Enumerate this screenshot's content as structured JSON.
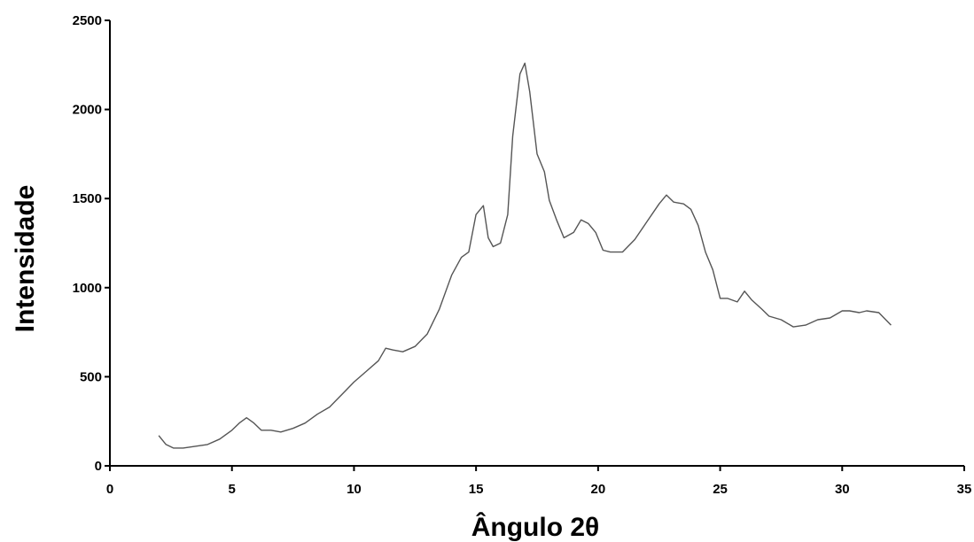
{
  "chart_data": {
    "type": "line",
    "title": "",
    "xlabel": "Ângulo 2θ",
    "ylabel": "Intensidade",
    "xlim": [
      0,
      35
    ],
    "ylim": [
      0,
      2500
    ],
    "x_ticks": [
      0,
      5,
      10,
      15,
      20,
      25,
      30,
      35
    ],
    "y_ticks": [
      0,
      500,
      1000,
      1500,
      2000,
      2500
    ],
    "grid": false,
    "legend": "none",
    "line_color": "#555555",
    "series": [
      {
        "x": [
          2,
          2.3,
          2.6,
          3,
          3.5,
          4,
          4.5,
          5,
          5.3,
          5.6,
          5.9,
          6.2,
          6.6,
          7,
          7.5,
          8,
          8.5,
          9,
          9.5,
          10,
          10.5,
          11,
          11.3,
          11.6,
          12,
          12.5,
          13,
          13.5,
          14,
          14.4,
          14.7,
          15,
          15.3,
          15.5,
          15.7,
          16,
          16.3,
          16.5,
          16.8,
          17,
          17.2,
          17.5,
          17.8,
          18,
          18.3,
          18.6,
          19,
          19.3,
          19.6,
          19.9,
          20.2,
          20.5,
          21,
          21.5,
          22,
          22.5,
          22.8,
          23.1,
          23.5,
          23.8,
          24.1,
          24.4,
          24.7,
          25,
          25.3,
          25.7,
          26,
          26.3,
          26.7,
          27,
          27.5,
          28,
          28.5,
          29,
          29.5,
          30,
          30.3,
          30.7,
          31,
          31.5,
          32
        ],
        "y": [
          170,
          120,
          100,
          100,
          110,
          120,
          150,
          200,
          240,
          270,
          240,
          200,
          200,
          190,
          210,
          240,
          290,
          330,
          400,
          470,
          530,
          590,
          660,
          650,
          640,
          670,
          740,
          880,
          1070,
          1170,
          1200,
          1410,
          1460,
          1280,
          1230,
          1250,
          1410,
          1850,
          2200,
          2260,
          2100,
          1750,
          1650,
          1490,
          1380,
          1280,
          1310,
          1380,
          1360,
          1310,
          1210,
          1200,
          1200,
          1270,
          1370,
          1470,
          1520,
          1480,
          1470,
          1440,
          1350,
          1200,
          1100,
          940,
          940,
          920,
          980,
          930,
          880,
          840,
          820,
          780,
          790,
          820,
          830,
          870,
          870,
          860,
          870,
          860,
          790
        ]
      }
    ]
  }
}
